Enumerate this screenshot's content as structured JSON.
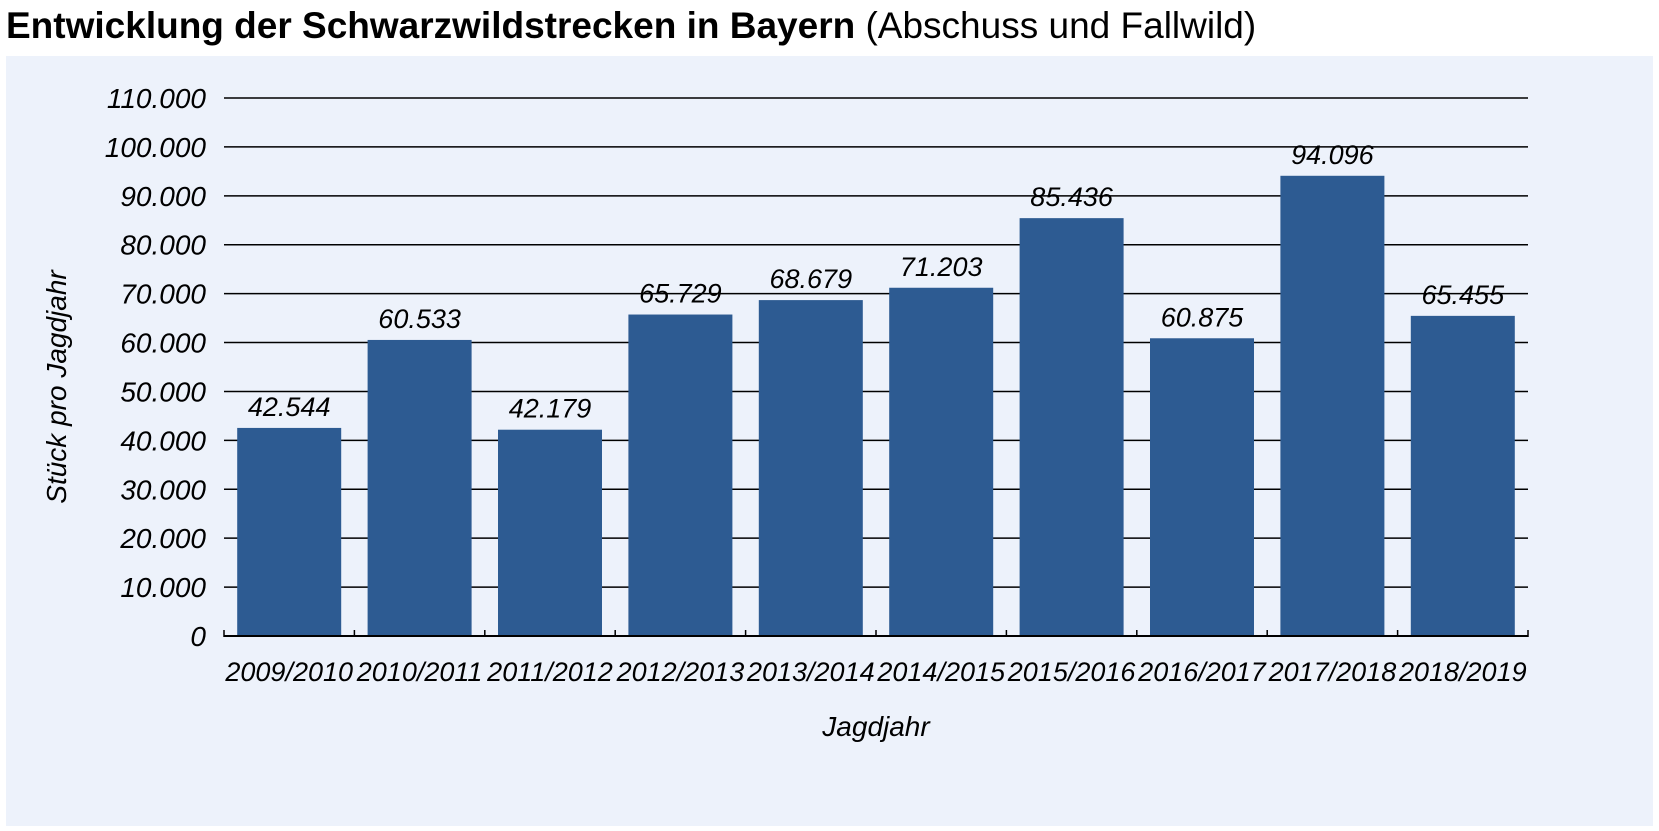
{
  "chart_data": {
    "type": "bar",
    "title": "Entwicklung der Schwarzwildstrecken in Bayern",
    "subtitle": "(Abschuss und Fallwild)",
    "xlabel": "Jagdjahr",
    "ylabel": "Stück pro Jagdjahr",
    "categories": [
      "2009/2010",
      "2010/2011",
      "2011/2012",
      "2012/2013",
      "2013/2014",
      "2014/2015",
      "2015/2016",
      "2016/2017",
      "2017/2018",
      "2018/2019"
    ],
    "values": [
      42544,
      60533,
      42179,
      65729,
      68679,
      71203,
      85436,
      60875,
      94096,
      65455
    ],
    "value_labels": [
      "42.544",
      "60.533",
      "42.179",
      "65.729",
      "68.679",
      "71.203",
      "85.436",
      "60.875",
      "94.096",
      "65.455"
    ],
    "ylim": [
      0,
      110000
    ],
    "yticks": [
      0,
      10000,
      20000,
      30000,
      40000,
      50000,
      60000,
      70000,
      80000,
      90000,
      100000,
      110000
    ],
    "ytick_labels": [
      "0",
      "10.000",
      "20.000",
      "30.000",
      "40.000",
      "50.000",
      "60.000",
      "70.000",
      "80.000",
      "90.000",
      "100.000",
      "110.000"
    ],
    "grid": true,
    "legend": "none",
    "colors": {
      "bar": "#2d5b92",
      "panel_background": "#edf2fb",
      "grid": "#000000"
    }
  }
}
